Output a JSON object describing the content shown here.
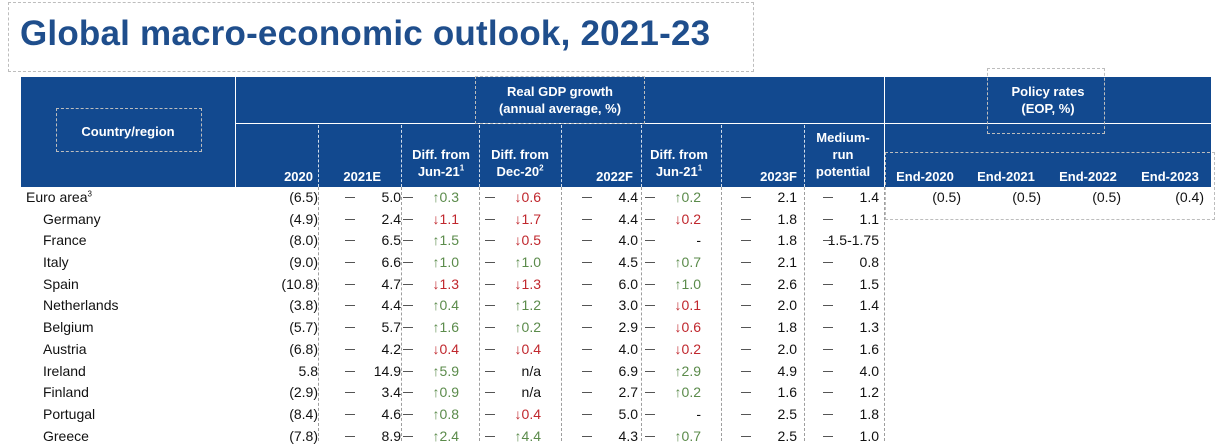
{
  "title": "Global macro-economic outlook, 2021-23",
  "header": {
    "country_region": "Country/region",
    "gdp_group_line1": "Real GDP growth",
    "gdp_group_line2": "(annual average, %)",
    "policy_group_line1": "Policy rates",
    "policy_group_line2": "(EOP, %)",
    "col_2020": "2020",
    "col_2021e": "2021E",
    "col_diff_jun_line1": "Diff. from",
    "col_diff_jun_line2": "Jun-21",
    "col_diff_jun_sup": "1",
    "col_diff_dec_line1": "Diff. from",
    "col_diff_dec_line2": "Dec-20",
    "col_diff_dec_sup": "2",
    "col_2022f": "2022F",
    "col_diff_jun2_line1": "Diff. from",
    "col_diff_jun2_line2": "Jun-21",
    "col_diff_jun2_sup": "1",
    "col_2023f": "2023F",
    "col_medium_line1": "Medium-",
    "col_medium_line2": "run",
    "col_medium_line3": "potential",
    "col_end2020": "End-2020",
    "col_end2021": "End-2021",
    "col_end2022": "End-2022",
    "col_end2023": "End-2023"
  },
  "rows": [
    {
      "name": "Euro area",
      "sup": "3",
      "y2020": "(6.5)",
      "y2021": "5.0",
      "d1": "↑0.3",
      "d1dir": "up",
      "d2": "↓0.6",
      "d2dir": "down",
      "y2022": "4.4",
      "d3": "↑0.2",
      "d3dir": "up",
      "y2023": "2.1",
      "mrp": "1.4",
      "p2020": "(0.5)",
      "p2021": "(0.5)",
      "p2022": "(0.5)",
      "p2023": "(0.4)"
    },
    {
      "name": "Germany",
      "y2020": "(4.9)",
      "y2021": "2.4",
      "d1": "↓1.1",
      "d1dir": "down",
      "d2": "↓1.7",
      "d2dir": "down",
      "y2022": "4.4",
      "d3": "↓0.2",
      "d3dir": "down",
      "y2023": "1.8",
      "mrp": "1.1"
    },
    {
      "name": "France",
      "y2020": "(8.0)",
      "y2021": "6.5",
      "d1": "↑1.5",
      "d1dir": "up",
      "d2": "↓0.5",
      "d2dir": "down",
      "y2022": "4.0",
      "d3": "-",
      "d3dir": "flat",
      "y2023": "1.8",
      "mrp": "1.5-1.75"
    },
    {
      "name": "Italy",
      "y2020": "(9.0)",
      "y2021": "6.6",
      "d1": "↑1.0",
      "d1dir": "up",
      "d2": "↑1.0",
      "d2dir": "up",
      "y2022": "4.5",
      "d3": "↑0.7",
      "d3dir": "up",
      "y2023": "2.1",
      "mrp": "0.8"
    },
    {
      "name": "Spain",
      "y2020": "(10.8)",
      "y2021": "4.7",
      "d1": "↓1.3",
      "d1dir": "down",
      "d2": "↓1.3",
      "d2dir": "down",
      "y2022": "6.0",
      "d3": "↑1.0",
      "d3dir": "up",
      "y2023": "2.6",
      "mrp": "1.5"
    },
    {
      "name": "Netherlands",
      "y2020": "(3.8)",
      "y2021": "4.4",
      "d1": "↑0.4",
      "d1dir": "up",
      "d2": "↑1.2",
      "d2dir": "up",
      "y2022": "3.0",
      "d3": "↓0.1",
      "d3dir": "down",
      "y2023": "2.0",
      "mrp": "1.4"
    },
    {
      "name": "Belgium",
      "y2020": "(5.7)",
      "y2021": "5.7",
      "d1": "↑1.6",
      "d1dir": "up",
      "d2": "↑0.2",
      "d2dir": "up",
      "y2022": "2.9",
      "d3": "↓0.6",
      "d3dir": "down",
      "y2023": "1.8",
      "mrp": "1.3"
    },
    {
      "name": "Austria",
      "y2020": "(6.8)",
      "y2021": "4.2",
      "d1": "↓0.4",
      "d1dir": "down",
      "d2": "↓0.4",
      "d2dir": "down",
      "y2022": "4.0",
      "d3": "↓0.2",
      "d3dir": "down",
      "y2023": "2.0",
      "mrp": "1.6"
    },
    {
      "name": "Ireland",
      "y2020": "5.8",
      "y2021": "14.9",
      "d1": "↑5.9",
      "d1dir": "up",
      "d2": "n/a",
      "d2dir": "flat",
      "y2022": "6.9",
      "d3": "↑2.9",
      "d3dir": "up",
      "y2023": "4.9",
      "mrp": "4.0"
    },
    {
      "name": "Finland",
      "y2020": "(2.9)",
      "y2021": "3.4",
      "d1": "↑0.9",
      "d1dir": "up",
      "d2": "n/a",
      "d2dir": "flat",
      "y2022": "2.7",
      "d3": "↑0.2",
      "d3dir": "up",
      "y2023": "1.6",
      "mrp": "1.2"
    },
    {
      "name": "Portugal",
      "y2020": "(8.4)",
      "y2021": "4.6",
      "d1": "↑0.8",
      "d1dir": "up",
      "d2": "↓0.4",
      "d2dir": "down",
      "y2022": "5.0",
      "d3": "-",
      "d3dir": "flat",
      "y2023": "2.5",
      "mrp": "1.8"
    },
    {
      "name": "Greece",
      "y2020": "(7.8)",
      "y2021": "8.9",
      "d1": "↑2.4",
      "d1dir": "up",
      "d2": "↑4.4",
      "d2dir": "up",
      "y2022": "4.3",
      "d3": "↑0.7",
      "d3dir": "up",
      "y2023": "2.5",
      "mrp": "1.0"
    }
  ]
}
